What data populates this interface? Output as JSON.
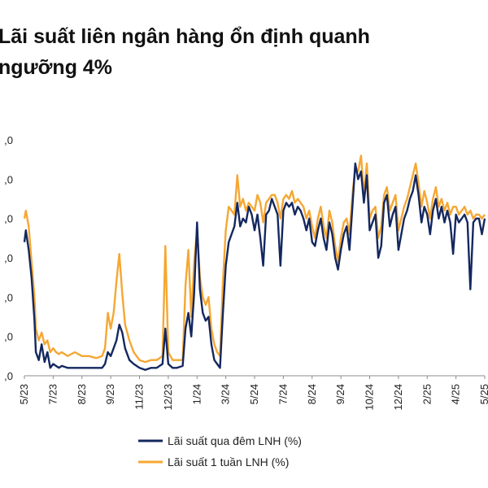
{
  "title_lines": [
    "Lãi suất liên ngân hàng ổn định quanh",
    "ngưỡng 4%"
  ],
  "chart_data": {
    "type": "line",
    "title": "Lãi suất liên ngân hàng ổn định quanh ngưỡng 4%",
    "ylim": [
      0,
      6
    ],
    "y_ticks": [
      0,
      1,
      2,
      3,
      4,
      5,
      6
    ],
    "y_tick_labels": [
      ",0",
      ",0",
      ",0",
      ",0",
      ",0",
      ",0",
      ",0"
    ],
    "x_tick_labels": [
      "5/23",
      "7/23",
      "8/23",
      "9/23",
      "11/23",
      "12/23",
      "1/24",
      "3/24",
      "5/24",
      "7/24",
      "8/24",
      "9/24",
      "10/24",
      "12/24",
      "2/25",
      "4/25",
      "5/25"
    ],
    "x_range": [
      0,
      32
    ],
    "x_tick_positions": [
      0,
      2,
      4,
      6,
      8,
      10,
      12,
      14,
      16,
      18,
      20,
      22,
      24,
      26,
      28,
      30,
      32
    ],
    "legend_position": "bottom",
    "series": [
      {
        "name": "Lãi suất qua đêm LNH (%)",
        "color": "#14285f",
        "points": [
          [
            0.0,
            3.4
          ],
          [
            0.1,
            3.7
          ],
          [
            0.3,
            3.2
          ],
          [
            0.5,
            2.5
          ],
          [
            0.7,
            1.4
          ],
          [
            0.8,
            0.6
          ],
          [
            1.0,
            0.4
          ],
          [
            1.2,
            0.8
          ],
          [
            1.4,
            0.35
          ],
          [
            1.6,
            0.6
          ],
          [
            1.8,
            0.2
          ],
          [
            2.0,
            0.3
          ],
          [
            2.2,
            0.25
          ],
          [
            2.4,
            0.2
          ],
          [
            2.6,
            0.25
          ],
          [
            3.0,
            0.2
          ],
          [
            3.5,
            0.2
          ],
          [
            4.0,
            0.2
          ],
          [
            4.5,
            0.2
          ],
          [
            5.0,
            0.2
          ],
          [
            5.4,
            0.2
          ],
          [
            5.6,
            0.3
          ],
          [
            5.8,
            0.6
          ],
          [
            6.0,
            0.5
          ],
          [
            6.2,
            0.7
          ],
          [
            6.4,
            0.9
          ],
          [
            6.6,
            1.3
          ],
          [
            6.8,
            1.1
          ],
          [
            7.0,
            0.7
          ],
          [
            7.3,
            0.4
          ],
          [
            7.6,
            0.3
          ],
          [
            8.0,
            0.2
          ],
          [
            8.4,
            0.15
          ],
          [
            8.8,
            0.2
          ],
          [
            9.2,
            0.2
          ],
          [
            9.6,
            0.3
          ],
          [
            9.8,
            1.2
          ],
          [
            10.0,
            0.3
          ],
          [
            10.3,
            0.2
          ],
          [
            10.6,
            0.2
          ],
          [
            11.0,
            0.25
          ],
          [
            11.2,
            1.2
          ],
          [
            11.4,
            1.6
          ],
          [
            11.6,
            1.0
          ],
          [
            11.8,
            2.1
          ],
          [
            12.0,
            3.9
          ],
          [
            12.2,
            2.2
          ],
          [
            12.4,
            1.6
          ],
          [
            12.6,
            1.4
          ],
          [
            12.8,
            1.5
          ],
          [
            13.0,
            0.8
          ],
          [
            13.2,
            0.4
          ],
          [
            13.4,
            0.3
          ],
          [
            13.6,
            0.2
          ],
          [
            13.8,
            1.6
          ],
          [
            14.0,
            2.8
          ],
          [
            14.2,
            3.4
          ],
          [
            14.4,
            3.6
          ],
          [
            14.6,
            3.8
          ],
          [
            14.8,
            4.4
          ],
          [
            15.0,
            3.8
          ],
          [
            15.2,
            4.0
          ],
          [
            15.4,
            3.9
          ],
          [
            15.6,
            4.3
          ],
          [
            15.8,
            4.1
          ],
          [
            16.0,
            3.7
          ],
          [
            16.2,
            4.1
          ],
          [
            16.4,
            3.5
          ],
          [
            16.6,
            2.8
          ],
          [
            16.8,
            4.1
          ],
          [
            17.0,
            4.2
          ],
          [
            17.2,
            4.5
          ],
          [
            17.4,
            4.3
          ],
          [
            17.6,
            4.1
          ],
          [
            17.8,
            2.8
          ],
          [
            18.0,
            4.2
          ],
          [
            18.2,
            4.4
          ],
          [
            18.4,
            4.3
          ],
          [
            18.6,
            4.4
          ],
          [
            18.8,
            4.1
          ],
          [
            19.0,
            4.3
          ],
          [
            19.2,
            4.2
          ],
          [
            19.4,
            4.0
          ],
          [
            19.6,
            3.7
          ],
          [
            19.8,
            4.0
          ],
          [
            20.0,
            3.4
          ],
          [
            20.2,
            3.3
          ],
          [
            20.4,
            3.7
          ],
          [
            20.6,
            4.0
          ],
          [
            20.8,
            3.5
          ],
          [
            21.0,
            3.2
          ],
          [
            21.2,
            3.9
          ],
          [
            21.4,
            3.6
          ],
          [
            21.6,
            3.0
          ],
          [
            21.8,
            2.7
          ],
          [
            22.0,
            3.2
          ],
          [
            22.2,
            3.6
          ],
          [
            22.4,
            3.8
          ],
          [
            22.6,
            3.2
          ],
          [
            22.8,
            4.3
          ],
          [
            23.0,
            5.4
          ],
          [
            23.2,
            5.0
          ],
          [
            23.4,
            5.2
          ],
          [
            23.6,
            4.4
          ],
          [
            23.8,
            5.1
          ],
          [
            24.0,
            3.7
          ],
          [
            24.2,
            3.9
          ],
          [
            24.4,
            4.1
          ],
          [
            24.6,
            3.0
          ],
          [
            24.8,
            3.3
          ],
          [
            25.0,
            4.4
          ],
          [
            25.2,
            4.6
          ],
          [
            25.4,
            3.8
          ],
          [
            25.6,
            4.1
          ],
          [
            25.8,
            4.3
          ],
          [
            26.0,
            3.2
          ],
          [
            26.2,
            3.6
          ],
          [
            26.4,
            4.0
          ],
          [
            26.6,
            4.2
          ],
          [
            26.8,
            4.5
          ],
          [
            27.0,
            4.7
          ],
          [
            27.2,
            5.1
          ],
          [
            27.4,
            4.6
          ],
          [
            27.6,
            3.9
          ],
          [
            27.8,
            4.3
          ],
          [
            28.0,
            4.1
          ],
          [
            28.2,
            3.6
          ],
          [
            28.4,
            4.2
          ],
          [
            28.6,
            4.5
          ],
          [
            28.8,
            4.0
          ],
          [
            29.0,
            4.3
          ],
          [
            29.2,
            3.9
          ],
          [
            29.4,
            4.2
          ],
          [
            29.6,
            3.9
          ],
          [
            29.8,
            3.1
          ],
          [
            30.0,
            4.1
          ],
          [
            30.2,
            3.9
          ],
          [
            30.4,
            4.0
          ],
          [
            30.6,
            4.1
          ],
          [
            30.8,
            3.9
          ],
          [
            31.0,
            2.2
          ],
          [
            31.2,
            3.9
          ],
          [
            31.4,
            4.0
          ],
          [
            31.6,
            4.0
          ],
          [
            31.8,
            3.6
          ],
          [
            32.0,
            4.0
          ]
        ]
      },
      {
        "name": "Lãi suất 1 tuần LNH (%)",
        "color": "#f5a733",
        "points": [
          [
            0.0,
            4.0
          ],
          [
            0.1,
            4.2
          ],
          [
            0.3,
            3.8
          ],
          [
            0.5,
            2.9
          ],
          [
            0.7,
            2.0
          ],
          [
            0.8,
            1.2
          ],
          [
            1.0,
            0.9
          ],
          [
            1.2,
            1.1
          ],
          [
            1.4,
            0.8
          ],
          [
            1.6,
            0.9
          ],
          [
            1.8,
            0.6
          ],
          [
            2.0,
            0.7
          ],
          [
            2.2,
            0.6
          ],
          [
            2.4,
            0.55
          ],
          [
            2.6,
            0.6
          ],
          [
            3.0,
            0.5
          ],
          [
            3.5,
            0.6
          ],
          [
            4.0,
            0.5
          ],
          [
            4.5,
            0.5
          ],
          [
            5.0,
            0.45
          ],
          [
            5.4,
            0.5
          ],
          [
            5.6,
            0.7
          ],
          [
            5.8,
            1.6
          ],
          [
            6.0,
            1.2
          ],
          [
            6.2,
            1.6
          ],
          [
            6.4,
            2.4
          ],
          [
            6.6,
            3.1
          ],
          [
            6.8,
            2.1
          ],
          [
            7.0,
            1.3
          ],
          [
            7.3,
            0.9
          ],
          [
            7.6,
            0.6
          ],
          [
            8.0,
            0.4
          ],
          [
            8.4,
            0.35
          ],
          [
            8.8,
            0.4
          ],
          [
            9.2,
            0.4
          ],
          [
            9.6,
            0.5
          ],
          [
            9.8,
            3.3
          ],
          [
            10.0,
            0.6
          ],
          [
            10.3,
            0.4
          ],
          [
            10.6,
            0.4
          ],
          [
            11.0,
            0.4
          ],
          [
            11.2,
            2.3
          ],
          [
            11.4,
            3.2
          ],
          [
            11.6,
            1.5
          ],
          [
            11.8,
            2.9
          ],
          [
            12.0,
            3.7
          ],
          [
            12.2,
            2.5
          ],
          [
            12.4,
            2.0
          ],
          [
            12.6,
            1.8
          ],
          [
            12.8,
            2.0
          ],
          [
            13.0,
            1.2
          ],
          [
            13.2,
            0.8
          ],
          [
            13.4,
            0.6
          ],
          [
            13.6,
            0.5
          ],
          [
            13.8,
            2.4
          ],
          [
            14.0,
            3.7
          ],
          [
            14.2,
            4.3
          ],
          [
            14.4,
            4.2
          ],
          [
            14.6,
            4.1
          ],
          [
            14.8,
            5.1
          ],
          [
            15.0,
            4.3
          ],
          [
            15.2,
            4.5
          ],
          [
            15.4,
            4.2
          ],
          [
            15.6,
            4.4
          ],
          [
            15.8,
            4.3
          ],
          [
            16.0,
            4.2
          ],
          [
            16.2,
            4.6
          ],
          [
            16.4,
            4.4
          ],
          [
            16.6,
            3.9
          ],
          [
            16.8,
            4.4
          ],
          [
            17.0,
            4.5
          ],
          [
            17.2,
            4.6
          ],
          [
            17.4,
            4.6
          ],
          [
            17.6,
            4.4
          ],
          [
            17.8,
            4.0
          ],
          [
            18.0,
            4.5
          ],
          [
            18.2,
            4.6
          ],
          [
            18.4,
            4.5
          ],
          [
            18.6,
            4.7
          ],
          [
            18.8,
            4.4
          ],
          [
            19.0,
            4.5
          ],
          [
            19.2,
            4.4
          ],
          [
            19.4,
            4.3
          ],
          [
            19.6,
            4.0
          ],
          [
            19.8,
            4.2
          ],
          [
            20.0,
            3.8
          ],
          [
            20.2,
            3.5
          ],
          [
            20.4,
            4.0
          ],
          [
            20.6,
            4.3
          ],
          [
            20.8,
            3.8
          ],
          [
            21.0,
            3.5
          ],
          [
            21.2,
            4.2
          ],
          [
            21.4,
            3.9
          ],
          [
            21.6,
            3.3
          ],
          [
            21.8,
            2.9
          ],
          [
            22.0,
            3.5
          ],
          [
            22.2,
            3.9
          ],
          [
            22.4,
            4.0
          ],
          [
            22.6,
            3.6
          ],
          [
            22.8,
            4.6
          ],
          [
            23.0,
            5.3
          ],
          [
            23.2,
            5.2
          ],
          [
            23.4,
            5.6
          ],
          [
            23.6,
            4.6
          ],
          [
            23.8,
            5.4
          ],
          [
            24.0,
            4.0
          ],
          [
            24.2,
            4.2
          ],
          [
            24.4,
            4.3
          ],
          [
            24.6,
            3.5
          ],
          [
            24.8,
            3.8
          ],
          [
            25.0,
            4.6
          ],
          [
            25.2,
            4.8
          ],
          [
            25.4,
            4.2
          ],
          [
            25.6,
            4.4
          ],
          [
            25.8,
            4.6
          ],
          [
            26.0,
            3.7
          ],
          [
            26.2,
            4.0
          ],
          [
            26.4,
            4.3
          ],
          [
            26.6,
            4.5
          ],
          [
            26.8,
            4.8
          ],
          [
            27.0,
            5.1
          ],
          [
            27.2,
            5.4
          ],
          [
            27.4,
            4.9
          ],
          [
            27.6,
            4.3
          ],
          [
            27.8,
            4.7
          ],
          [
            28.0,
            4.4
          ],
          [
            28.2,
            4.0
          ],
          [
            28.4,
            4.5
          ],
          [
            28.6,
            4.8
          ],
          [
            28.8,
            4.3
          ],
          [
            29.0,
            4.5
          ],
          [
            29.2,
            4.2
          ],
          [
            29.4,
            4.4
          ],
          [
            29.6,
            4.1
          ],
          [
            29.8,
            4.3
          ],
          [
            30.0,
            4.3
          ],
          [
            30.2,
            4.1
          ],
          [
            30.4,
            4.2
          ],
          [
            30.6,
            4.3
          ],
          [
            30.8,
            4.1
          ],
          [
            31.0,
            4.2
          ],
          [
            31.2,
            4.0
          ],
          [
            31.4,
            4.1
          ],
          [
            31.6,
            4.1
          ],
          [
            31.8,
            4.0
          ],
          [
            32.0,
            4.1
          ]
        ]
      }
    ]
  }
}
